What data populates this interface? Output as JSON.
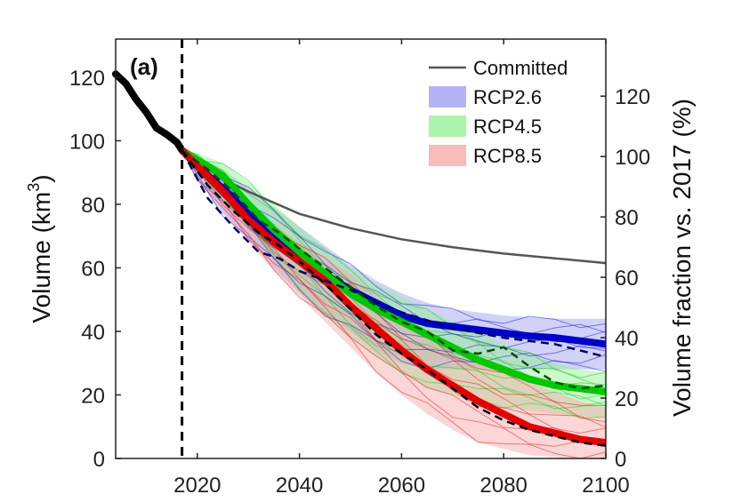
{
  "chart_data": {
    "type": "line",
    "panel_label": "(a)",
    "xlabel": "",
    "ylabel": "Volume (km",
    "ylabel_sup": "3",
    "ylabel_close": ")",
    "y2label": "Volume fraction vs. 2017 (%)",
    "xlim": [
      2004,
      2100
    ],
    "ylim": [
      0,
      132
    ],
    "y2lim": [
      0,
      138.9
    ],
    "x_ticks": [
      2020,
      2040,
      2060,
      2080,
      2100
    ],
    "y_ticks": [
      0,
      20,
      40,
      60,
      80,
      100,
      120
    ],
    "y2_ticks": [
      0,
      20,
      40,
      60,
      80,
      100,
      120
    ],
    "vline_x": 2017,
    "grid": false,
    "legend_position": "top-right",
    "historical": {
      "x": [
        2004,
        2006,
        2008,
        2010,
        2012,
        2014,
        2016,
        2017
      ],
      "y": [
        121,
        118,
        113,
        109,
        104,
        102,
        99.5,
        97
      ]
    },
    "series": [
      {
        "name": "Committed",
        "color": "#555555",
        "x": [
          2017,
          2025,
          2030,
          2040,
          2050,
          2060,
          2070,
          2080,
          2090,
          2100
        ],
        "y": [
          97,
          88,
          84,
          77,
          72.5,
          69,
          66.5,
          64.5,
          63,
          61.5
        ]
      },
      {
        "name": "RCP2.6",
        "color": "#0000c8",
        "band_color": "#9b9bf0",
        "x": [
          2017,
          2020,
          2025,
          2030,
          2035,
          2040,
          2045,
          2050,
          2055,
          2060,
          2065,
          2070,
          2075,
          2080,
          2085,
          2090,
          2095,
          2100
        ],
        "y": [
          97,
          92,
          85,
          78,
          71,
          64,
          58,
          53,
          49,
          45,
          42.5,
          41.5,
          40.5,
          39.5,
          38.5,
          38,
          37,
          36
        ],
        "lower": [
          97,
          88,
          77,
          69,
          60,
          52,
          45,
          40,
          34,
          30,
          28,
          28,
          28,
          28,
          28,
          28,
          28,
          28
        ],
        "upper": [
          97,
          95,
          91,
          85,
          79,
          73,
          67,
          61,
          56,
          52,
          49,
          47,
          46,
          45,
          44.5,
          44,
          44,
          44
        ],
        "dashed": {
          "x": [
            2017,
            2022,
            2027,
            2032,
            2036,
            2040,
            2045,
            2050,
            2060,
            2070,
            2080,
            2090,
            2100
          ],
          "y": [
            97,
            82,
            73,
            65,
            63,
            59,
            56,
            53,
            46,
            41,
            38,
            36,
            32
          ]
        }
      },
      {
        "name": "RCP4.5",
        "color": "#00c800",
        "band_color": "#8ff08f",
        "x": [
          2017,
          2020,
          2025,
          2030,
          2035,
          2040,
          2045,
          2050,
          2055,
          2060,
          2065,
          2070,
          2075,
          2080,
          2085,
          2090,
          2095,
          2100
        ],
        "y": [
          97,
          94,
          89,
          80,
          72,
          65,
          58,
          52,
          47,
          43,
          39,
          35,
          31,
          28,
          25,
          23,
          22,
          21
        ],
        "lower": [
          97,
          91,
          82,
          72,
          62,
          53,
          45,
          38,
          32,
          27,
          22,
          20,
          18,
          16,
          15,
          14,
          13,
          13
        ],
        "upper": [
          97,
          96,
          93,
          87,
          80,
          73,
          66,
          60,
          55,
          51,
          47,
          43,
          40,
          36,
          33,
          30,
          28,
          27
        ],
        "dashed": {
          "x": [
            2017,
            2022,
            2027,
            2032,
            2036,
            2040,
            2045,
            2050,
            2055,
            2060,
            2065,
            2070,
            2075,
            2080,
            2085,
            2090,
            2095,
            2100
          ],
          "y": [
            97,
            91,
            84,
            75,
            71,
            66,
            60,
            54,
            48,
            43,
            40,
            34,
            33,
            35,
            29,
            24,
            22,
            23
          ]
        }
      },
      {
        "name": "RCP8.5",
        "color": "#e00000",
        "band_color": "#f5a3a3",
        "x": [
          2017,
          2020,
          2025,
          2030,
          2035,
          2040,
          2045,
          2050,
          2055,
          2060,
          2065,
          2070,
          2075,
          2080,
          2085,
          2090,
          2095,
          2100
        ],
        "y": [
          97,
          92,
          84,
          75,
          68,
          62,
          56,
          48,
          41,
          34,
          28,
          23,
          18,
          14,
          10,
          8,
          6,
          5
        ],
        "lower": [
          97,
          89,
          78,
          68,
          59,
          51,
          43,
          35,
          27,
          20,
          14,
          9,
          5,
          3,
          1,
          0.5,
          0,
          0
        ],
        "upper": [
          97,
          94,
          88,
          80,
          74,
          68,
          63,
          58,
          51,
          45,
          40,
          35,
          31,
          27,
          24,
          21,
          18,
          16
        ],
        "dashed": {
          "x": [
            2017,
            2022,
            2027,
            2032,
            2036,
            2040,
            2045,
            2050,
            2055,
            2060,
            2065,
            2070,
            2075,
            2080,
            2085,
            2090,
            2095,
            2100
          ],
          "y": [
            97,
            86,
            78,
            71,
            67,
            62,
            55,
            47,
            39,
            33,
            28,
            22,
            16,
            12,
            9,
            7,
            5,
            4
          ]
        }
      }
    ],
    "legend": [
      {
        "label": "Committed",
        "kind": "line",
        "color": "#555555"
      },
      {
        "label": "RCP2.6",
        "kind": "patch",
        "color": "#9b9bf0"
      },
      {
        "label": "RCP4.5",
        "kind": "patch",
        "color": "#8ff08f"
      },
      {
        "label": "RCP8.5",
        "kind": "patch",
        "color": "#f5a3a3"
      }
    ]
  }
}
